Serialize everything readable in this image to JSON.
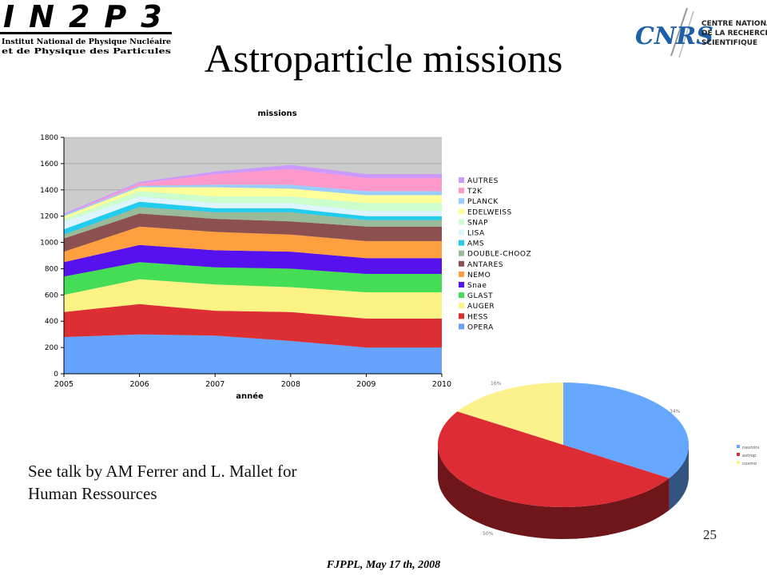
{
  "slide": {
    "title": "Astroparticle missions",
    "note_line1": "See talk by AM Ferrer and L. Mallet for",
    "note_line2": "Human Ressources",
    "page_number": "25",
    "footer": "FJPPL, May 17 th, 2008"
  },
  "logos": {
    "left": {
      "main": "IN2P3",
      "line1": "Institut National de Physique Nucléaire",
      "line2": "et de Physique des Particules"
    },
    "right": {
      "main": "CNRS",
      "line1": "CENTRE NATIONAL",
      "line2": "DE LA RECHERCHE",
      "line3": "SCIENTIFIQUE"
    }
  },
  "chart_data": [
    {
      "type": "area",
      "stacked": true,
      "title": "missions",
      "xlabel": "année",
      "ylabel": "",
      "x": [
        2005,
        2006,
        2007,
        2008,
        2009,
        2010
      ],
      "ylim": [
        0,
        1800
      ],
      "yticks": [
        0,
        200,
        400,
        600,
        800,
        1000,
        1200,
        1400,
        1600,
        1800
      ],
      "plot_background": "#cccccc",
      "legend_position": "right",
      "series": [
        {
          "name": "OPERA",
          "color": "#66a3ff",
          "values": [
            280,
            300,
            290,
            250,
            200,
            200
          ]
        },
        {
          "name": "HESS",
          "color": "#dd2e33",
          "values": [
            190,
            230,
            190,
            220,
            220,
            220
          ]
        },
        {
          "name": "AUGER",
          "color": "#fdf385",
          "values": [
            130,
            190,
            200,
            190,
            200,
            200
          ]
        },
        {
          "name": "GLAST",
          "color": "#44dd55",
          "values": [
            140,
            130,
            130,
            140,
            140,
            140
          ]
        },
        {
          "name": "Snae",
          "color": "#5511ee",
          "values": [
            110,
            130,
            130,
            130,
            120,
            120
          ]
        },
        {
          "name": "NEMO",
          "color": "#ffa040",
          "values": [
            80,
            140,
            140,
            130,
            130,
            130
          ]
        },
        {
          "name": "ANTARES",
          "color": "#8c5050",
          "values": [
            100,
            100,
            100,
            100,
            110,
            110
          ]
        },
        {
          "name": "DOUBLE-CHOOZ",
          "color": "#99bb99",
          "values": [
            30,
            50,
            50,
            70,
            50,
            50
          ]
        },
        {
          "name": "AMS",
          "color": "#22ccee",
          "values": [
            40,
            40,
            30,
            30,
            30,
            30
          ]
        },
        {
          "name": "LISA",
          "color": "#ddf5ff",
          "values": [
            60,
            40,
            40,
            40,
            40,
            40
          ]
        },
        {
          "name": "SNAP",
          "color": "#ccffcc",
          "values": [
            20,
            40,
            50,
            50,
            60,
            60
          ]
        },
        {
          "name": "EDELWEISS",
          "color": "#ffff99",
          "values": [
            20,
            30,
            70,
            60,
            60,
            60
          ]
        },
        {
          "name": "PLANCK",
          "color": "#99ccff",
          "values": [
            10,
            10,
            20,
            30,
            30,
            30
          ]
        },
        {
          "name": "T2K",
          "color": "#ff99cc",
          "values": [
            0,
            20,
            80,
            120,
            100,
            100
          ]
        },
        {
          "name": "AUTRES",
          "color": "#cc99ff",
          "values": [
            10,
            10,
            20,
            30,
            30,
            30
          ]
        }
      ]
    },
    {
      "type": "pie",
      "style": "3d",
      "categories": [
        "neutrino",
        "astrop",
        "cosmo"
      ],
      "values": [
        34,
        50,
        16
      ],
      "labels": [
        "34%",
        "50%",
        "16%"
      ],
      "colors": [
        "#66a8ff",
        "#dd2c33",
        "#fdf18c"
      ],
      "legend_position": "right"
    }
  ]
}
